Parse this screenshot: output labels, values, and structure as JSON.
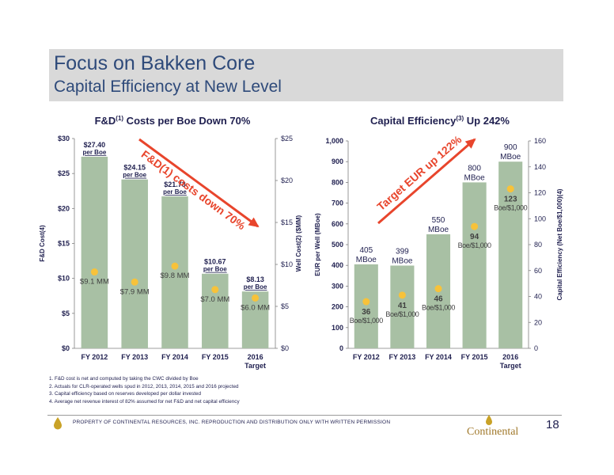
{
  "header": {
    "title": "Focus on Bakken Core",
    "subtitle": "Capital Efficiency at New Level"
  },
  "chart_data": [
    {
      "type": "bar",
      "title": "F&D(1) Costs per Boe Down 70%",
      "title_main": "F&D",
      "title_sup": "(1)",
      "title_rest": " Costs per Boe Down 70%",
      "categories": [
        "FY 2012",
        "FY 2013",
        "FY 2014",
        "FY 2015",
        "2016 Target"
      ],
      "category_lines": [
        [
          "FY 2012"
        ],
        [
          "FY 2013"
        ],
        [
          "FY 2014"
        ],
        [
          "FY 2015"
        ],
        [
          "2016",
          "Target"
        ]
      ],
      "ylabel": "F&D Cost(4)",
      "y2label": "Well Cost(2) ($MM)",
      "ylim": [
        0,
        30
      ],
      "yticks": [
        "$0",
        "$5",
        "$10",
        "$15",
        "$20",
        "$25",
        "$30"
      ],
      "y2lim": [
        0,
        25
      ],
      "y2ticks": [
        "$0",
        "$5",
        "$10",
        "$15",
        "$20",
        "$25"
      ],
      "series": [
        {
          "name": "F&D cost per Boe",
          "values": [
            27.4,
            24.15,
            21.73,
            10.67,
            8.13
          ],
          "labels": [
            "$27.40",
            "$24.15",
            "$21.73",
            "$10.67",
            "$8.13"
          ],
          "label_unit": "per Boe",
          "color": "#a8c0a4"
        },
        {
          "name": "Well cost",
          "axis": "right",
          "values": [
            9.1,
            7.9,
            9.8,
            7.0,
            6.0
          ],
          "labels": [
            "$9.1 MM",
            "$7.9 MM",
            "$9.8 MM",
            "$7.0 MM",
            "$6.0 MM"
          ],
          "color": "#f7c23a"
        }
      ],
      "annotation": "F&D(1) costs down 70%",
      "annotation_color": "#e8452c"
    },
    {
      "type": "bar",
      "title": "Capital Efficiency(3) Up 242%",
      "title_main": "Capital Efficiency",
      "title_sup": "(3)",
      "title_rest": " Up 242%",
      "categories": [
        "FY 2012",
        "FY 2013",
        "FY 2014",
        "FY 2015",
        "2016 Target"
      ],
      "category_lines": [
        [
          "FY 2012"
        ],
        [
          "FY 2013"
        ],
        [
          "FY 2014"
        ],
        [
          "FY 2015"
        ],
        [
          "2016",
          "Target"
        ]
      ],
      "ylabel": "EUR per Well (MBoe)",
      "y2label": "Capital Efficiency (Net Boe/$1,000)(4)",
      "ylim": [
        0,
        1000
      ],
      "yticks": [
        "0",
        "100",
        "200",
        "300",
        "400",
        "500",
        "600",
        "700",
        "800",
        "900",
        "1,000"
      ],
      "y2lim": [
        0,
        160
      ],
      "y2ticks": [
        "0",
        "20",
        "40",
        "60",
        "80",
        "100",
        "120",
        "140",
        "160"
      ],
      "series": [
        {
          "name": "EUR per well",
          "values": [
            405,
            399,
            550,
            800,
            900
          ],
          "labels": [
            "405",
            "399",
            "550",
            "800",
            "900"
          ],
          "label_unit": "MBoe",
          "color": "#a8c0a4"
        },
        {
          "name": "Capital efficiency",
          "axis": "right",
          "values": [
            36,
            41,
            46,
            94,
            123
          ],
          "labels": [
            "36",
            "41",
            "46",
            "94",
            "123"
          ],
          "label_unit": "Boe/$1,000",
          "color": "#f7c23a"
        }
      ],
      "annotation": "Target EUR up 122%",
      "annotation_color": "#e8452c"
    }
  ],
  "footnotes": [
    "1. F&D cost is net and computed by taking the CWC divided by Boe",
    "2. Actuals for CLR-operated wells spud in 2012, 2013, 2014, 2015 and 2016 projected",
    "3. Capital efficiency based on reserves developed per dollar invested",
    "4. Average net revenue interest of 82% assumed for net F&D and net capital efficiency"
  ],
  "footer": {
    "disclaimer": "PROPERTY OF CONTINENTAL RESOURCES, INC. REPRODUCTION AND DISTRIBUTION ONLY WITH WRITTEN PERMISSION",
    "page_number": "18",
    "logo_text": "Continental",
    "logo_icon": "oil-drop-icon",
    "accent": "#c9a227"
  }
}
